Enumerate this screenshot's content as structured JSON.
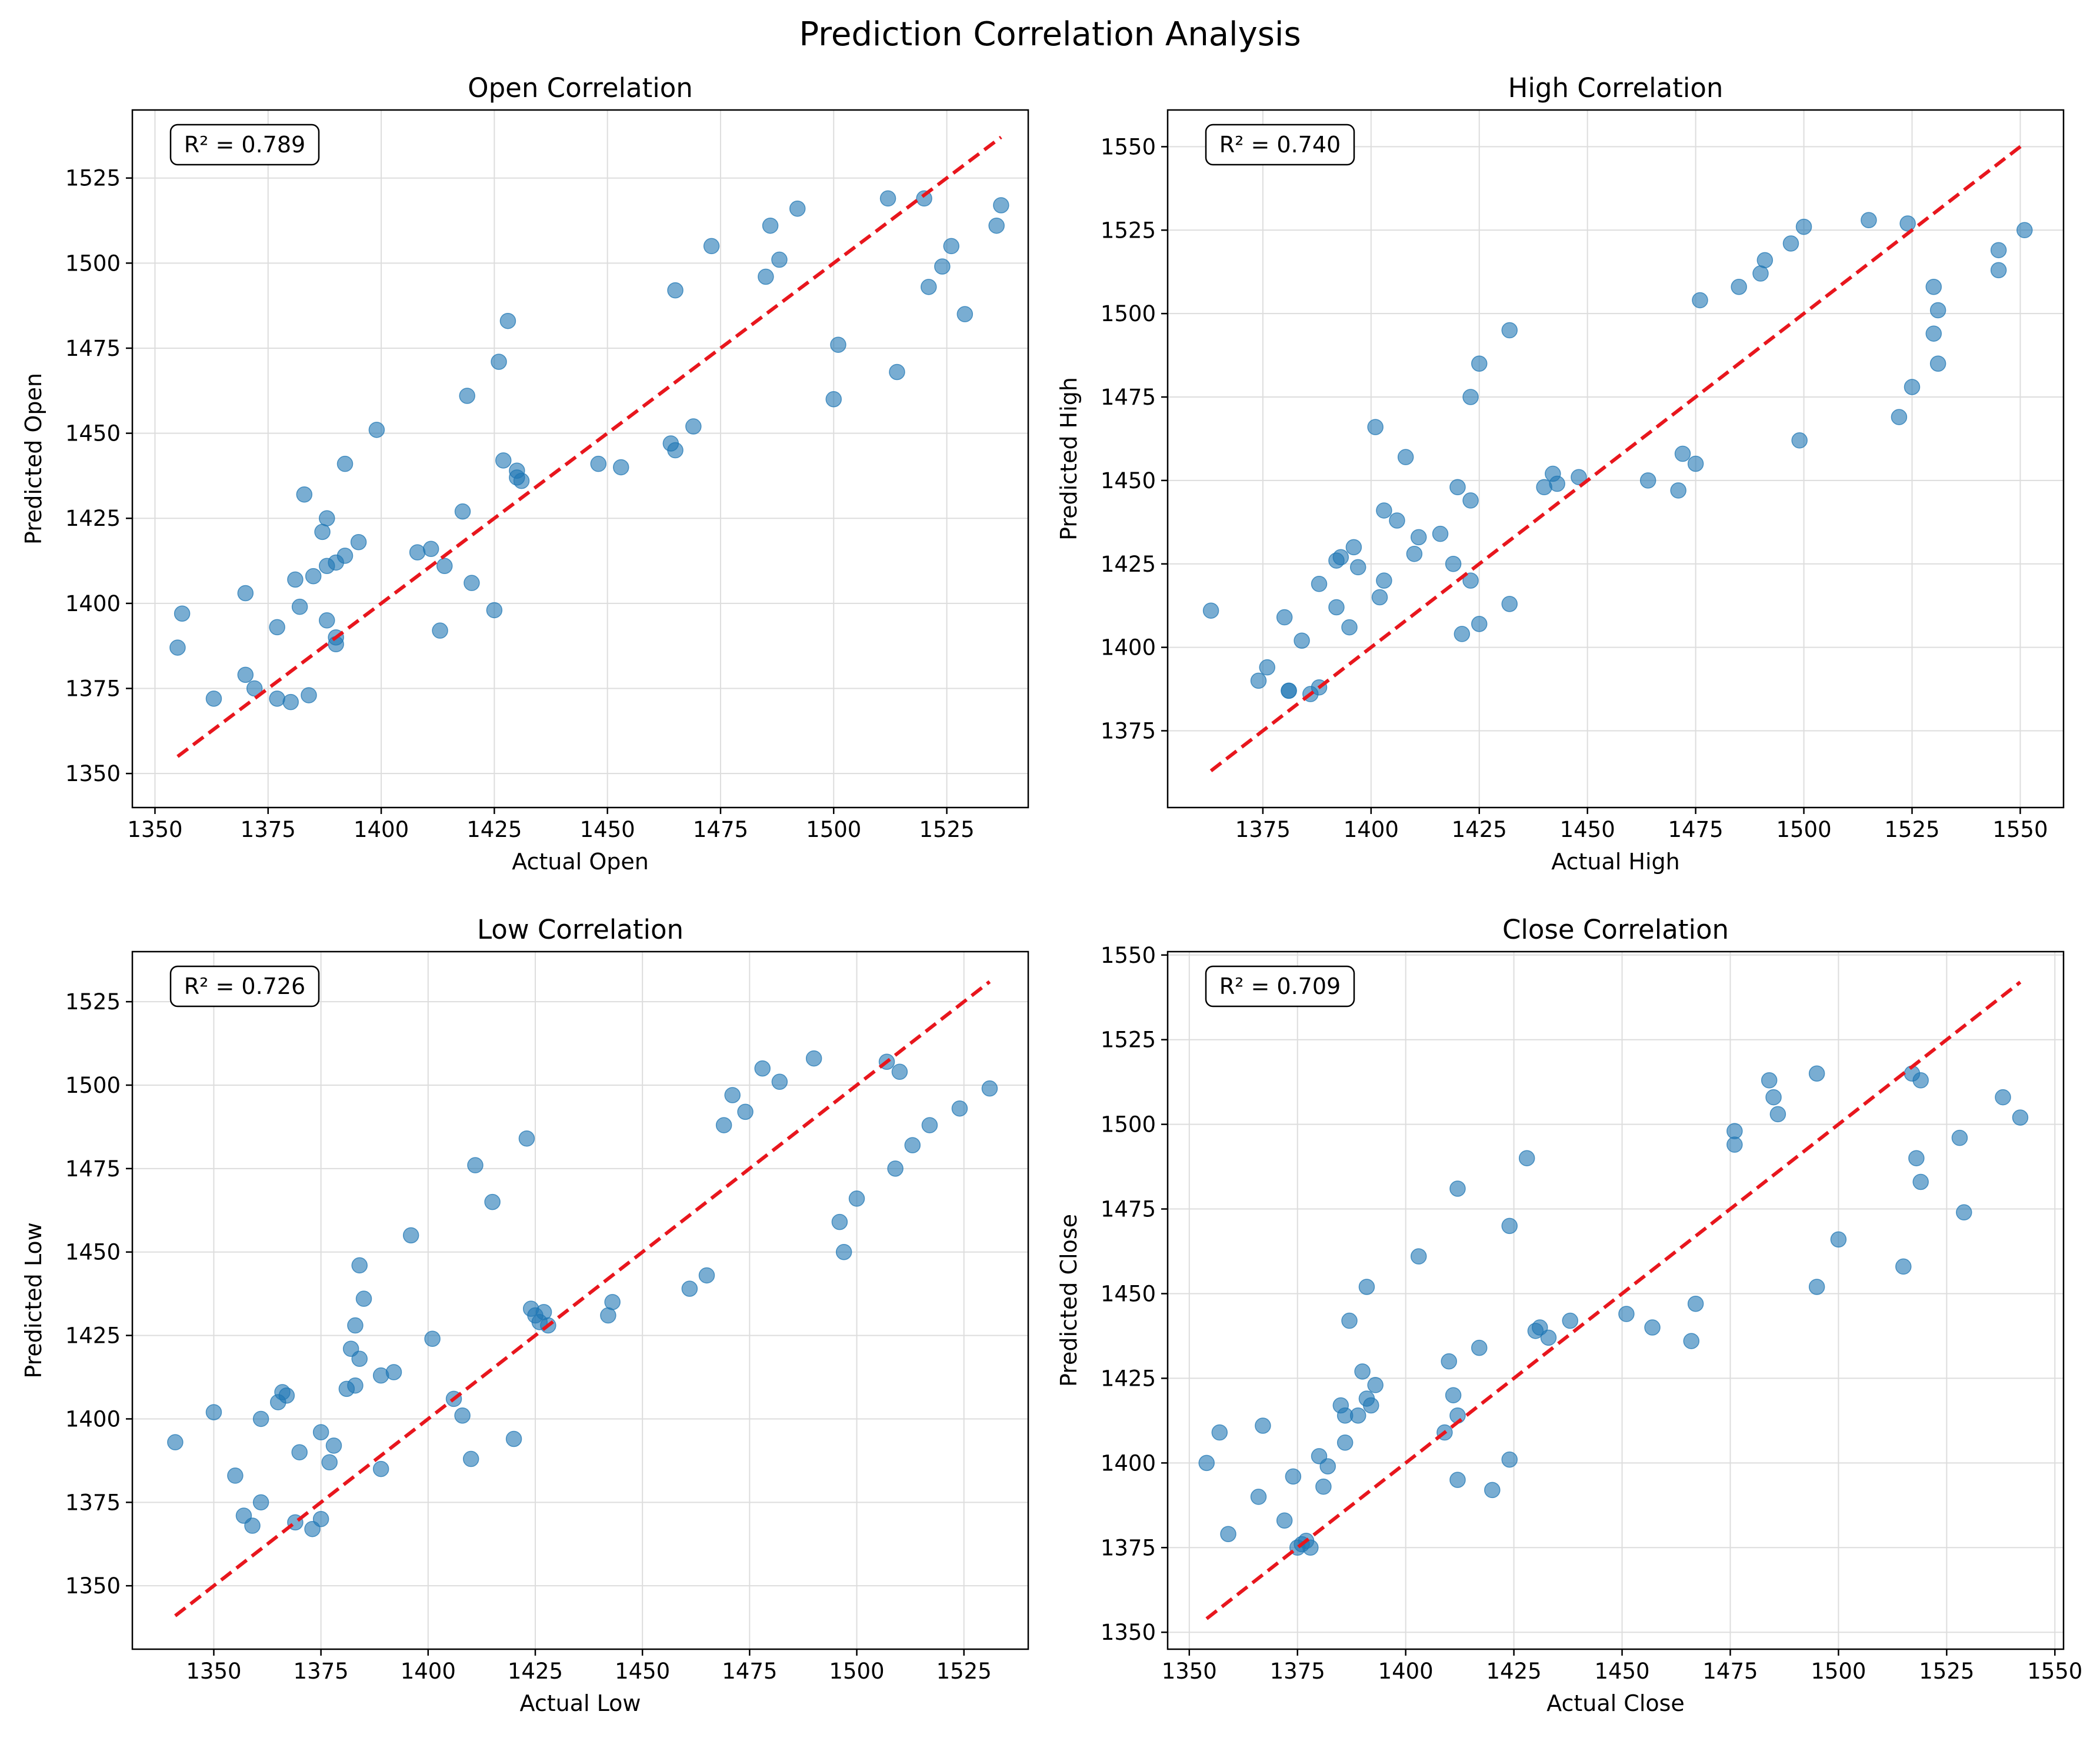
{
  "figure": {
    "title": "Prediction Correlation Analysis"
  },
  "colors": {
    "points": "#1f77b4",
    "reference_line": "#e8161d",
    "grid": "#dddddd",
    "axes": "#000000"
  },
  "chart_data": [
    {
      "type": "scatter",
      "title": "Open Correlation",
      "xlabel": "Actual Open",
      "ylabel": "Predicted Open",
      "annotation": "R² = 0.789",
      "xlim": [
        1345,
        1543
      ],
      "ylim": [
        1340,
        1545
      ],
      "xticks": [
        1350,
        1375,
        1400,
        1425,
        1450,
        1475,
        1500,
        1525
      ],
      "yticks": [
        1350,
        1375,
        1400,
        1425,
        1450,
        1475,
        1500,
        1525
      ],
      "grid": true,
      "reference_line": {
        "x": [
          1355,
          1537
        ],
        "y": [
          1355,
          1537
        ]
      },
      "points": [
        [
          1355,
          1387
        ],
        [
          1356,
          1397
        ],
        [
          1363,
          1372
        ],
        [
          1370,
          1403
        ],
        [
          1370,
          1379
        ],
        [
          1372,
          1375
        ],
        [
          1377,
          1372
        ],
        [
          1377,
          1393
        ],
        [
          1380,
          1371
        ],
        [
          1381,
          1407
        ],
        [
          1382,
          1399
        ],
        [
          1383,
          1432
        ],
        [
          1384,
          1373
        ],
        [
          1385,
          1408
        ],
        [
          1387,
          1421
        ],
        [
          1388,
          1425
        ],
        [
          1388,
          1411
        ],
        [
          1388,
          1395
        ],
        [
          1390,
          1412
        ],
        [
          1390,
          1390
        ],
        [
          1390,
          1388
        ],
        [
          1392,
          1441
        ],
        [
          1392,
          1414
        ],
        [
          1395,
          1418
        ],
        [
          1399,
          1451
        ],
        [
          1408,
          1415
        ],
        [
          1411,
          1416
        ],
        [
          1413,
          1392
        ],
        [
          1414,
          1411
        ],
        [
          1418,
          1427
        ],
        [
          1419,
          1461
        ],
        [
          1420,
          1406
        ],
        [
          1425,
          1398
        ],
        [
          1426,
          1471
        ],
        [
          1427,
          1442
        ],
        [
          1428,
          1483
        ],
        [
          1430,
          1439
        ],
        [
          1430,
          1437
        ],
        [
          1431,
          1436
        ],
        [
          1448,
          1441
        ],
        [
          1453,
          1440
        ],
        [
          1464,
          1447
        ],
        [
          1465,
          1492
        ],
        [
          1465,
          1445
        ],
        [
          1469,
          1452
        ],
        [
          1473,
          1505
        ],
        [
          1485,
          1496
        ],
        [
          1486,
          1511
        ],
        [
          1488,
          1501
        ],
        [
          1492,
          1516
        ],
        [
          1500,
          1460
        ],
        [
          1501,
          1476
        ],
        [
          1512,
          1519
        ],
        [
          1514,
          1468
        ],
        [
          1520,
          1519
        ],
        [
          1521,
          1493
        ],
        [
          1524,
          1499
        ],
        [
          1526,
          1505
        ],
        [
          1529,
          1485
        ],
        [
          1536,
          1511
        ],
        [
          1537,
          1517
        ]
      ]
    },
    {
      "type": "scatter",
      "title": "High Correlation",
      "xlabel": "Actual High",
      "ylabel": "Predicted High",
      "annotation": "R² = 0.740",
      "xlim": [
        1353,
        1560
      ],
      "ylim": [
        1352,
        1561
      ],
      "xticks": [
        1375,
        1400,
        1425,
        1450,
        1475,
        1500,
        1525,
        1550
      ],
      "yticks": [
        1375,
        1400,
        1425,
        1450,
        1475,
        1500,
        1525,
        1550
      ],
      "grid": true,
      "reference_line": {
        "x": [
          1363,
          1551
        ],
        "y": [
          1363,
          1551
        ]
      },
      "points": [
        [
          1363,
          1411
        ],
        [
          1374,
          1390
        ],
        [
          1376,
          1394
        ],
        [
          1380,
          1409
        ],
        [
          1381,
          1387
        ],
        [
          1381,
          1387
        ],
        [
          1384,
          1402
        ],
        [
          1386,
          1386
        ],
        [
          1388,
          1419
        ],
        [
          1388,
          1388
        ],
        [
          1392,
          1426
        ],
        [
          1392,
          1412
        ],
        [
          1393,
          1427
        ],
        [
          1395,
          1406
        ],
        [
          1396,
          1430
        ],
        [
          1397,
          1424
        ],
        [
          1401,
          1466
        ],
        [
          1402,
          1415
        ],
        [
          1403,
          1441
        ],
        [
          1403,
          1420
        ],
        [
          1406,
          1438
        ],
        [
          1408,
          1457
        ],
        [
          1410,
          1428
        ],
        [
          1411,
          1433
        ],
        [
          1416,
          1434
        ],
        [
          1419,
          1425
        ],
        [
          1420,
          1448
        ],
        [
          1421,
          1404
        ],
        [
          1423,
          1475
        ],
        [
          1423,
          1444
        ],
        [
          1423,
          1420
        ],
        [
          1425,
          1485
        ],
        [
          1425,
          1407
        ],
        [
          1432,
          1495
        ],
        [
          1432,
          1413
        ],
        [
          1440,
          1448
        ],
        [
          1442,
          1452
        ],
        [
          1443,
          1449
        ],
        [
          1448,
          1451
        ],
        [
          1464,
          1450
        ],
        [
          1471,
          1447
        ],
        [
          1472,
          1458
        ],
        [
          1475,
          1455
        ],
        [
          1476,
          1504
        ],
        [
          1485,
          1508
        ],
        [
          1490,
          1512
        ],
        [
          1491,
          1516
        ],
        [
          1497,
          1521
        ],
        [
          1499,
          1462
        ],
        [
          1500,
          1526
        ],
        [
          1515,
          1528
        ],
        [
          1522,
          1469
        ],
        [
          1524,
          1527
        ],
        [
          1525,
          1478
        ],
        [
          1530,
          1508
        ],
        [
          1530,
          1494
        ],
        [
          1531,
          1485
        ],
        [
          1531,
          1501
        ],
        [
          1545,
          1519
        ],
        [
          1545,
          1513
        ],
        [
          1551,
          1525
        ]
      ]
    },
    {
      "type": "scatter",
      "title": "Low Correlation",
      "xlabel": "Actual Low",
      "ylabel": "Predicted Low",
      "annotation": "R² = 0.726",
      "xlim": [
        1331,
        1540
      ],
      "ylim": [
        1331,
        1540
      ],
      "xticks": [
        1350,
        1375,
        1400,
        1425,
        1450,
        1475,
        1500,
        1525
      ],
      "yticks": [
        1350,
        1375,
        1400,
        1425,
        1450,
        1475,
        1500,
        1525
      ],
      "grid": true,
      "reference_line": {
        "x": [
          1341,
          1531
        ],
        "y": [
          1341,
          1531
        ]
      },
      "points": [
        [
          1341,
          1393
        ],
        [
          1350,
          1402
        ],
        [
          1355,
          1383
        ],
        [
          1357,
          1371
        ],
        [
          1359,
          1368
        ],
        [
          1361,
          1400
        ],
        [
          1361,
          1375
        ],
        [
          1365,
          1405
        ],
        [
          1366,
          1408
        ],
        [
          1367,
          1407
        ],
        [
          1369,
          1369
        ],
        [
          1370,
          1390
        ],
        [
          1373,
          1367
        ],
        [
          1375,
          1370
        ],
        [
          1375,
          1396
        ],
        [
          1377,
          1387
        ],
        [
          1378,
          1392
        ],
        [
          1381,
          1409
        ],
        [
          1382,
          1421
        ],
        [
          1383,
          1428
        ],
        [
          1383,
          1410
        ],
        [
          1384,
          1446
        ],
        [
          1384,
          1418
        ],
        [
          1385,
          1436
        ],
        [
          1389,
          1385
        ],
        [
          1389,
          1413
        ],
        [
          1392,
          1414
        ],
        [
          1396,
          1455
        ],
        [
          1401,
          1424
        ],
        [
          1406,
          1406
        ],
        [
          1408,
          1401
        ],
        [
          1410,
          1388
        ],
        [
          1411,
          1476
        ],
        [
          1415,
          1465
        ],
        [
          1420,
          1394
        ],
        [
          1423,
          1484
        ],
        [
          1424,
          1433
        ],
        [
          1425,
          1431
        ],
        [
          1426,
          1429
        ],
        [
          1427,
          1432
        ],
        [
          1428,
          1428
        ],
        [
          1442,
          1431
        ],
        [
          1443,
          1435
        ],
        [
          1461,
          1439
        ],
        [
          1465,
          1443
        ],
        [
          1469,
          1488
        ],
        [
          1471,
          1497
        ],
        [
          1474,
          1492
        ],
        [
          1478,
          1505
        ],
        [
          1482,
          1501
        ],
        [
          1490,
          1508
        ],
        [
          1496,
          1459
        ],
        [
          1497,
          1450
        ],
        [
          1500,
          1466
        ],
        [
          1507,
          1507
        ],
        [
          1509,
          1475
        ],
        [
          1510,
          1504
        ],
        [
          1513,
          1482
        ],
        [
          1517,
          1488
        ],
        [
          1524,
          1493
        ],
        [
          1531,
          1499
        ]
      ]
    },
    {
      "type": "scatter",
      "title": "Close Correlation",
      "xlabel": "Actual Close",
      "ylabel": "Predicted Close",
      "annotation": "R² = 0.709",
      "xlim": [
        1345,
        1552
      ],
      "ylim": [
        1345,
        1551
      ],
      "xticks": [
        1350,
        1375,
        1400,
        1425,
        1450,
        1475,
        1500,
        1525,
        1550
      ],
      "yticks": [
        1350,
        1375,
        1400,
        1425,
        1450,
        1475,
        1500,
        1525,
        1550
      ],
      "grid": true,
      "reference_line": {
        "x": [
          1354,
          1542
        ],
        "y": [
          1354,
          1542
        ]
      },
      "points": [
        [
          1354,
          1400
        ],
        [
          1357,
          1409
        ],
        [
          1359,
          1379
        ],
        [
          1366,
          1390
        ],
        [
          1367,
          1411
        ],
        [
          1372,
          1383
        ],
        [
          1374,
          1396
        ],
        [
          1375,
          1375
        ],
        [
          1376,
          1376
        ],
        [
          1377,
          1377
        ],
        [
          1378,
          1375
        ],
        [
          1380,
          1402
        ],
        [
          1381,
          1393
        ],
        [
          1382,
          1399
        ],
        [
          1385,
          1417
        ],
        [
          1386,
          1414
        ],
        [
          1386,
          1406
        ],
        [
          1387,
          1442
        ],
        [
          1389,
          1414
        ],
        [
          1390,
          1427
        ],
        [
          1391,
          1452
        ],
        [
          1391,
          1419
        ],
        [
          1392,
          1417
        ],
        [
          1393,
          1423
        ],
        [
          1403,
          1461
        ],
        [
          1409,
          1409
        ],
        [
          1410,
          1430
        ],
        [
          1411,
          1420
        ],
        [
          1412,
          1481
        ],
        [
          1412,
          1414
        ],
        [
          1412,
          1395
        ],
        [
          1417,
          1434
        ],
        [
          1420,
          1392
        ],
        [
          1424,
          1470
        ],
        [
          1424,
          1401
        ],
        [
          1428,
          1490
        ],
        [
          1430,
          1439
        ],
        [
          1431,
          1440
        ],
        [
          1433,
          1437
        ],
        [
          1438,
          1442
        ],
        [
          1451,
          1444
        ],
        [
          1457,
          1440
        ],
        [
          1466,
          1436
        ],
        [
          1467,
          1447
        ],
        [
          1476,
          1494
        ],
        [
          1476,
          1498
        ],
        [
          1484,
          1513
        ],
        [
          1485,
          1508
        ],
        [
          1486,
          1503
        ],
        [
          1495,
          1515
        ],
        [
          1495,
          1452
        ],
        [
          1500,
          1466
        ],
        [
          1515,
          1458
        ],
        [
          1517,
          1515
        ],
        [
          1518,
          1490
        ],
        [
          1519,
          1513
        ],
        [
          1519,
          1483
        ],
        [
          1528,
          1496
        ],
        [
          1529,
          1474
        ],
        [
          1538,
          1508
        ],
        [
          1542,
          1502
        ]
      ]
    }
  ]
}
